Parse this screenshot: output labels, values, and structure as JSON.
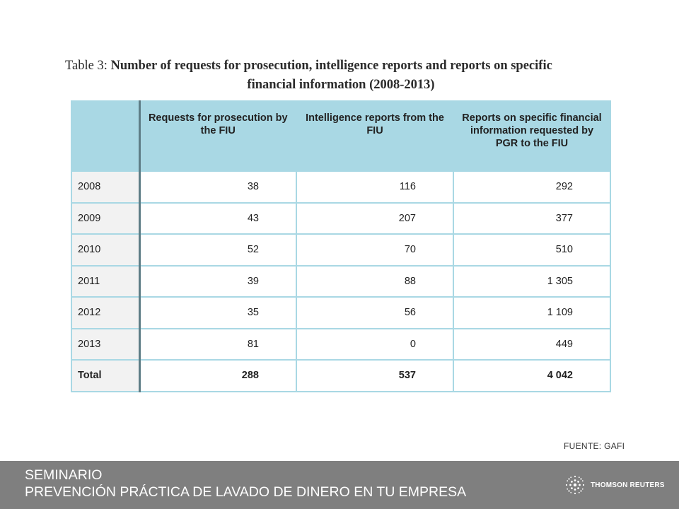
{
  "caption": {
    "prefix": "Table 3:",
    "line1_rest": " Number of requests for prosecution, intelligence reports and reports on specific",
    "line2": "financial information (2008-2013)"
  },
  "table": {
    "headers": [
      "",
      "Requests for prosecution by the FIU",
      "Intelligence reports from the FIU",
      "Reports on specific financial information requested by PGR to the FIU"
    ],
    "rows": [
      {
        "year": "2008",
        "requests": "38",
        "intel": "116",
        "reports": "292"
      },
      {
        "year": "2009",
        "requests": "43",
        "intel": "207",
        "reports": "377"
      },
      {
        "year": "2010",
        "requests": "52",
        "intel": "70",
        "reports": "510"
      },
      {
        "year": "2011",
        "requests": "39",
        "intel": "88",
        "reports": "1 305"
      },
      {
        "year": "2012",
        "requests": "35",
        "intel": "56",
        "reports": "1 109"
      },
      {
        "year": "2013",
        "requests": "81",
        "intel": "0",
        "reports": "449"
      },
      {
        "year": "Total",
        "requests": "288",
        "intel": "537",
        "reports": "4 042"
      }
    ]
  },
  "source": "FUENTE: GAFI",
  "footer": {
    "line1": "SEMINARIO",
    "line2": "PREVENCIÓN PRÁCTICA DE LAVADO DE DINERO EN TU EMPRESA",
    "brand": "THOMSON REUTERS",
    "brand_icon": "thomson-reuters-logo-icon"
  },
  "colors": {
    "header_bg": "#a9d8e4",
    "footer_bg": "#7f7f7f",
    "year_col_bg": "#f2f2f2"
  }
}
